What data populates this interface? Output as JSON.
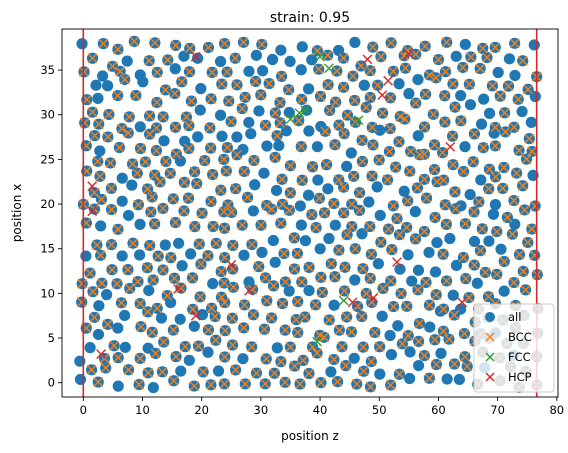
{
  "chart_data": {
    "type": "scatter",
    "title": "strain: 0.95",
    "xlabel": "position z",
    "ylabel": "position x",
    "xlim": [
      -3.6,
      80.2
    ],
    "ylim": [
      -1.6,
      39.6
    ],
    "xticks": [
      0,
      10,
      20,
      30,
      40,
      50,
      60,
      70,
      80
    ],
    "yticks": [
      0,
      5,
      10,
      15,
      20,
      25,
      30,
      35
    ],
    "vlines": {
      "color": "#d62728",
      "x": [
        0,
        76.6
      ]
    },
    "legend": {
      "position": "lower-right",
      "entries": [
        {
          "label": "all",
          "marker": "circle",
          "color": "#1f77b4"
        },
        {
          "label": "BCC",
          "marker": "x",
          "color": "#ff7f0e"
        },
        {
          "label": "FCC",
          "marker": "x",
          "color": "#2ca02c"
        },
        {
          "label": "HCP",
          "marker": "x",
          "color": "#d62728"
        }
      ]
    },
    "lattice": {
      "description": "approximately regular grid of atoms",
      "z_range": [
        0,
        76.6
      ],
      "x_range": [
        0,
        38
      ],
      "z_step": 3.05,
      "x_step": 2.9
    },
    "series": [
      {
        "name": "FCC",
        "color": "#2ca02c",
        "marker": "x",
        "points": [
          [
            40,
            36.5
          ],
          [
            41.5,
            35.2
          ],
          [
            35,
            29.5
          ],
          [
            36.5,
            30.2
          ],
          [
            46.5,
            29.4
          ],
          [
            44,
            9.2
          ],
          [
            39.5,
            4.6
          ],
          [
            37.5,
            30.5
          ]
        ]
      },
      {
        "name": "HCP",
        "color": "#d62728",
        "marker": "x",
        "points": [
          [
            19,
            36.5
          ],
          [
            48,
            36.2
          ],
          [
            55,
            36.8
          ],
          [
            50.5,
            32.2
          ],
          [
            51.5,
            33.8
          ],
          [
            62,
            26.4
          ],
          [
            1.5,
            22
          ],
          [
            1.5,
            19.2
          ],
          [
            25,
            13.2
          ],
          [
            16,
            10.5
          ],
          [
            28,
            10.3
          ],
          [
            19,
            7.5
          ],
          [
            45.5,
            9
          ],
          [
            3,
            3.2
          ],
          [
            49,
            9.5
          ],
          [
            53,
            13.5
          ],
          [
            64,
            9
          ]
        ]
      }
    ]
  }
}
